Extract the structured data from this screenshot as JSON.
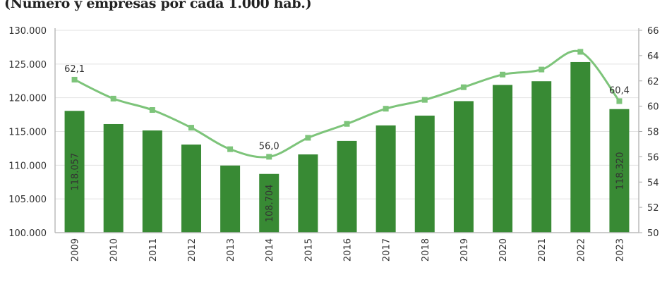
{
  "chart_data": {
    "type": "bar+line",
    "title": "(Número y empresas por cada 1.000 hab.)",
    "categories": [
      "2009",
      "2010",
      "2011",
      "2012",
      "2013",
      "2014",
      "2015",
      "2016",
      "2017",
      "2018",
      "2019",
      "2020",
      "2021",
      "2022",
      "2023"
    ],
    "series": [
      {
        "type": "bar",
        "axis": "left",
        "color": "#388a34",
        "values": [
          118057,
          116100,
          115150,
          113060,
          109950,
          108704,
          111600,
          113600,
          115900,
          117350,
          119500,
          121900,
          122450,
          125300,
          118320
        ],
        "labels": {
          "0": "118.057",
          "5": "108.704",
          "14": "118.320"
        }
      },
      {
        "type": "line",
        "axis": "right",
        "color": "#7dc47a",
        "values": [
          62.1,
          60.6,
          59.7,
          58.3,
          56.6,
          56.0,
          57.5,
          58.6,
          59.8,
          60.5,
          61.5,
          62.5,
          62.9,
          64.3,
          60.4
        ],
        "labels": {
          "0": "62,1",
          "5": "56,0",
          "14": "60,4"
        }
      }
    ],
    "y_left": {
      "lim": [
        100000,
        130000
      ],
      "ticks": [
        "100.000",
        "105.000",
        "110.000",
        "115.000",
        "120.000",
        "125.000",
        "130.000"
      ]
    },
    "y_right": {
      "lim": [
        50,
        66
      ],
      "ticks": [
        "50",
        "52",
        "54",
        "56",
        "58",
        "60",
        "62",
        "64",
        "66"
      ]
    },
    "grid": true,
    "legend": "none"
  }
}
